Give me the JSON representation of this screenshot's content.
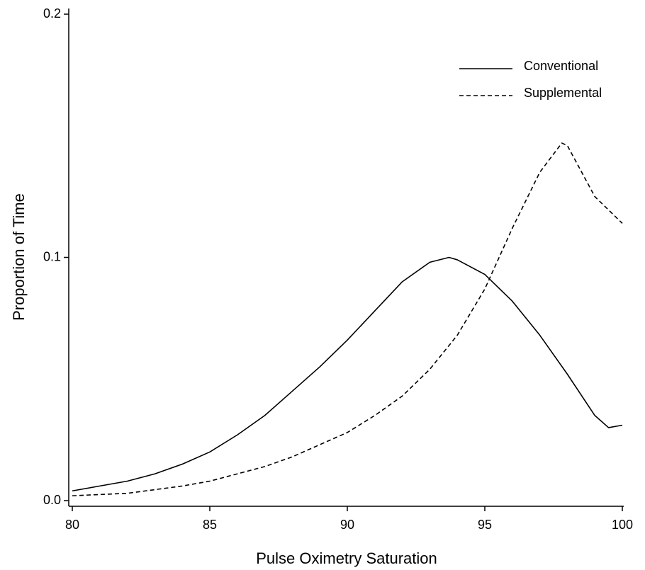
{
  "chart_data": {
    "type": "line",
    "x_label": "Pulse Oximetry Saturation",
    "y_label": "Proportion of Time",
    "legend": "upper right",
    "xlim": [
      80,
      100
    ],
    "xticks": [
      80,
      85,
      90,
      95,
      100
    ],
    "ylim": [
      0,
      0.2
    ],
    "yticks": [
      {
        "value": 0,
        "label": "0.0"
      },
      0.1,
      0.2
    ],
    "series": [
      {
        "name": "Conventional",
        "color": "#000000",
        "dash": "solid",
        "x": [
          80,
          81,
          82,
          83,
          84,
          85,
          86,
          87,
          88,
          89,
          90,
          91,
          92,
          93,
          93.7,
          94,
          95,
          96,
          97,
          98,
          99,
          99.5,
          100
        ],
        "values": [
          0.004,
          0.006,
          0.008,
          0.011,
          0.015,
          0.02,
          0.027,
          0.035,
          0.045,
          0.055,
          0.066,
          0.078,
          0.09,
          0.098,
          0.1,
          0.099,
          0.093,
          0.082,
          0.068,
          0.052,
          0.035,
          0.03,
          0.031
        ]
      },
      {
        "name": "Supplemental",
        "color": "#000000",
        "dash": "dashed",
        "x": [
          80,
          82,
          84,
          85,
          86,
          87,
          88,
          89,
          90,
          91,
          92,
          93,
          94,
          95,
          96,
          97,
          97.8,
          98,
          99,
          100
        ],
        "values": [
          0.002,
          0.003,
          0.006,
          0.008,
          0.011,
          0.014,
          0.018,
          0.023,
          0.028,
          0.035,
          0.043,
          0.054,
          0.068,
          0.087,
          0.112,
          0.135,
          0.147,
          0.146,
          0.125,
          0.114
        ]
      }
    ]
  }
}
